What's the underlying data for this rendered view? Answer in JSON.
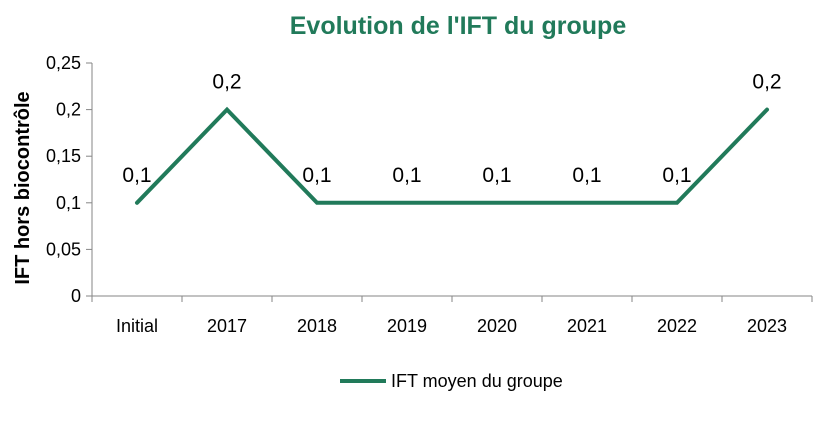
{
  "chart_data": {
    "type": "line",
    "title": "Evolution de l'IFT du groupe",
    "ylabel": "IFT  hors biocontrôle",
    "xlabel": "",
    "categories": [
      "Initial",
      "2017",
      "2018",
      "2019",
      "2020",
      "2021",
      "2022",
      "2023"
    ],
    "series": [
      {
        "name": "IFT moyen du groupe",
        "values": [
          0.1,
          0.2,
          0.1,
          0.1,
          0.1,
          0.1,
          0.1,
          0.2
        ],
        "labels": [
          "0,1",
          "0,2",
          "0,1",
          "0,1",
          "0,1",
          "0,1",
          "0,1",
          "0,2"
        ],
        "color": "#217a5a"
      }
    ],
    "ylim": [
      0,
      0.25
    ],
    "yticks": [
      0,
      0.05,
      0.1,
      0.15,
      0.2,
      0.25
    ],
    "ytick_labels": [
      "0",
      "0,05",
      "0,1",
      "0,15",
      "0,2",
      "0,25"
    ],
    "grid": false,
    "legend_position": "bottom"
  }
}
